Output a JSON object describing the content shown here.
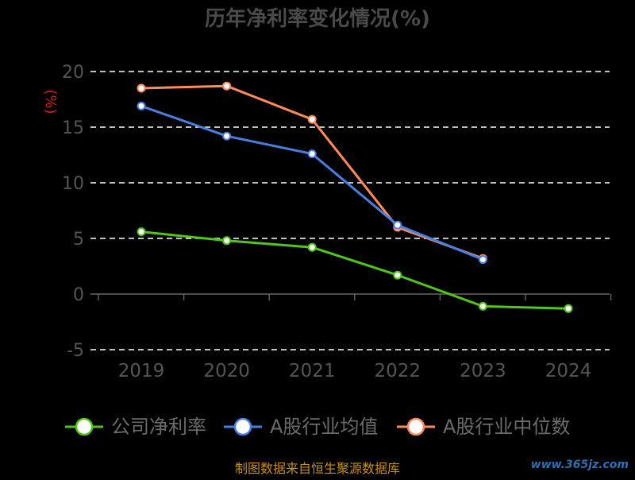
{
  "title": "历年净利率变化情况(%)",
  "unit": "(%)",
  "source": "制图数据来自恒生聚源数据库",
  "watermark": "www.365jz.com",
  "colors": {
    "background": "#000000",
    "company": "#52c41a",
    "industry_avg": "#4a7fe0",
    "industry_median": "#ff8a5c"
  },
  "chart_data": {
    "type": "line",
    "title": "历年净利率变化情况(%)",
    "ylabel": "(%)",
    "categories": [
      "2019",
      "2020",
      "2021",
      "2022",
      "2023",
      "2024"
    ],
    "ylim": [
      -5,
      20
    ],
    "yticks": [
      -5,
      0,
      5,
      10,
      15,
      20
    ],
    "grid": true,
    "legend_position": "bottom",
    "series": [
      {
        "name": "公司净利率",
        "color": "#52c41a",
        "values": [
          5.6,
          4.8,
          4.2,
          1.7,
          -1.1,
          -1.3
        ]
      },
      {
        "name": "A股行业均值",
        "color": "#4a7fe0",
        "values": [
          16.9,
          14.2,
          12.6,
          6.2,
          3.1,
          null
        ]
      },
      {
        "name": "A股行业中位数",
        "color": "#ff8a5c",
        "values": [
          18.5,
          18.7,
          15.7,
          6.0,
          3.2,
          null
        ]
      }
    ]
  }
}
